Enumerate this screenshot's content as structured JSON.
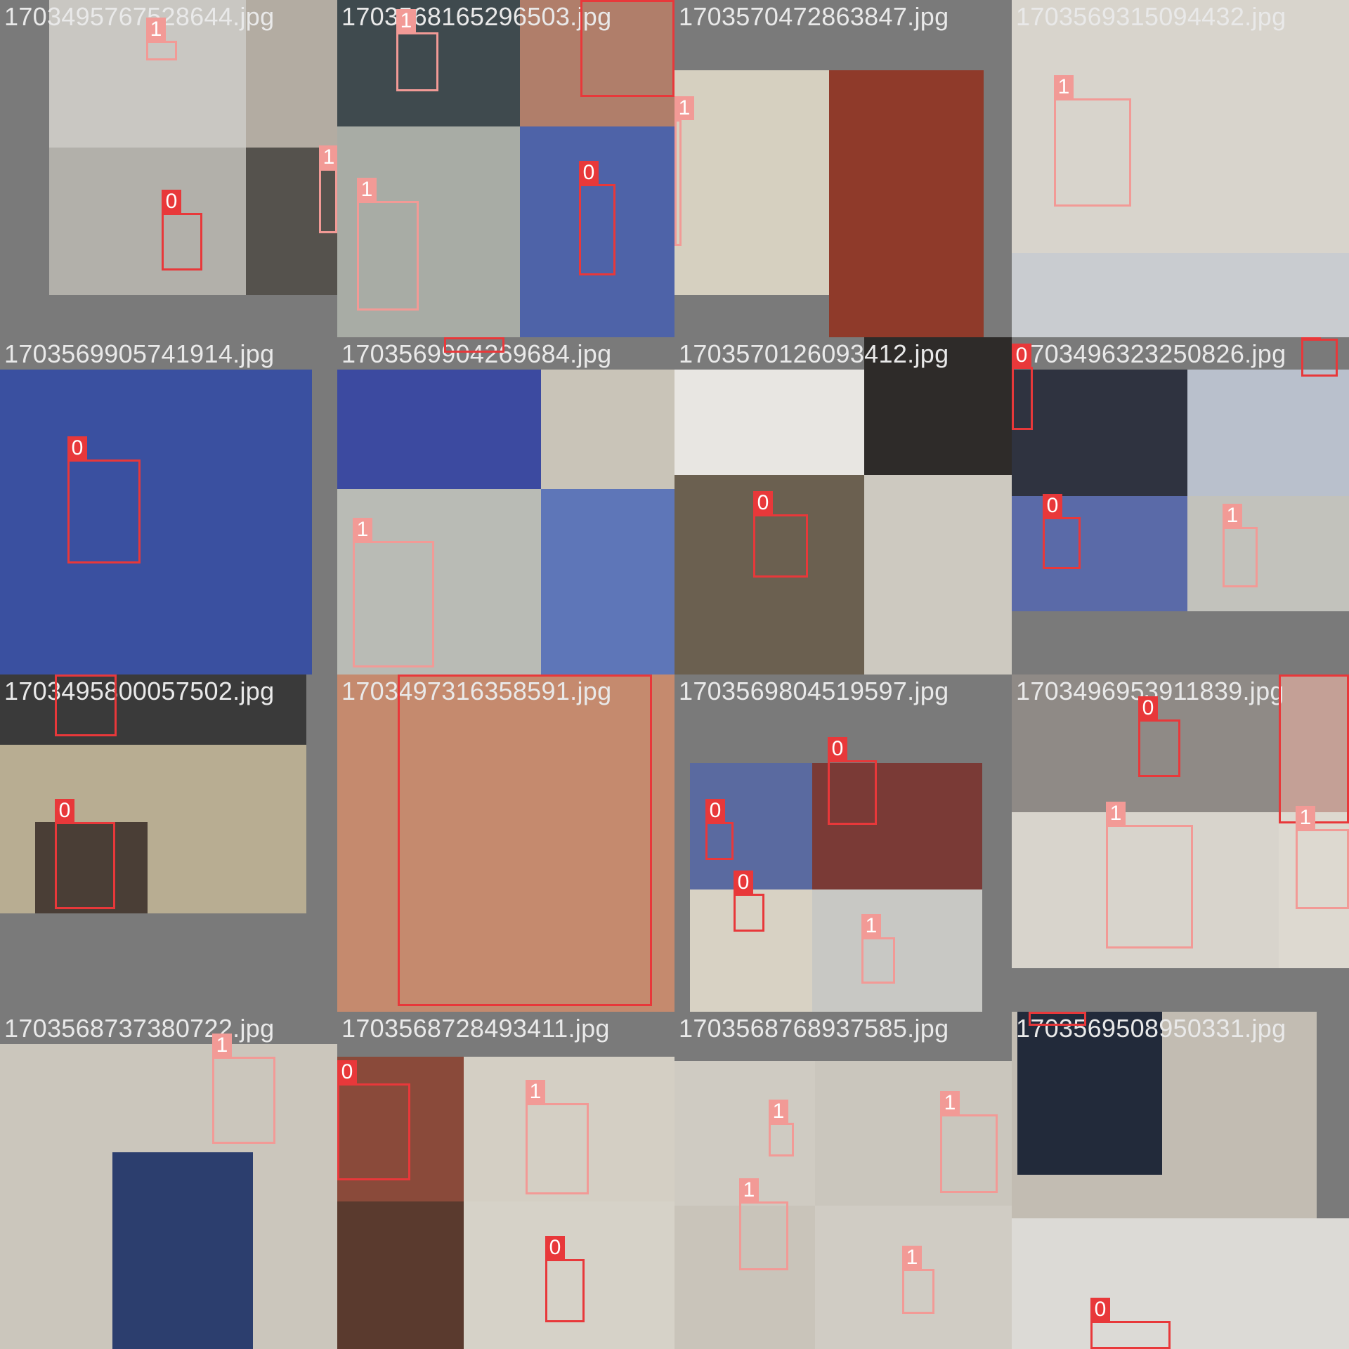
{
  "tiles": [
    {
      "filename": "1703495767528644.jpg",
      "labels": [
        "1",
        "0",
        "1"
      ]
    },
    {
      "filename": "1703568165296503.jpg",
      "labels": [
        "1",
        "0",
        "1",
        "0"
      ]
    },
    {
      "filename": "1703570472863847.jpg",
      "labels": [
        "1"
      ]
    },
    {
      "filename": "1703569315094432.jpg",
      "labels": [
        "1"
      ]
    },
    {
      "filename": "1703569905741914.jpg",
      "labels": [
        "0"
      ]
    },
    {
      "filename": "1703569904269684.jpg",
      "labels": [
        "0",
        "1"
      ]
    },
    {
      "filename": "1703570126093412.jpg",
      "labels": [
        "0"
      ]
    },
    {
      "filename": "1703496323250826.jpg",
      "labels": [
        "0",
        "0",
        "0",
        "1"
      ]
    },
    {
      "filename": "1703495800057502.jpg",
      "labels": [
        "0",
        "0"
      ]
    },
    {
      "filename": "1703497316358591.jpg",
      "labels": [
        "0"
      ]
    },
    {
      "filename": "1703569804519597.jpg",
      "labels": [
        "0",
        "0",
        "0",
        "1"
      ]
    },
    {
      "filename": "1703496953911839.jpg",
      "labels": [
        "0",
        "0",
        "1",
        "1"
      ]
    },
    {
      "filename": "1703568737380722.jpg",
      "labels": [
        "1"
      ]
    },
    {
      "filename": "1703568728493411.jpg",
      "labels": [
        "0",
        "1",
        "0"
      ]
    },
    {
      "filename": "1703568768937585.jpg",
      "labels": [
        "1",
        "1",
        "1",
        "1"
      ]
    },
    {
      "filename": "1703569508950331.jpg",
      "labels": [
        "0",
        "0"
      ]
    }
  ],
  "class_colors": {
    "0": "#e8383a",
    "1": "#f29a96"
  }
}
